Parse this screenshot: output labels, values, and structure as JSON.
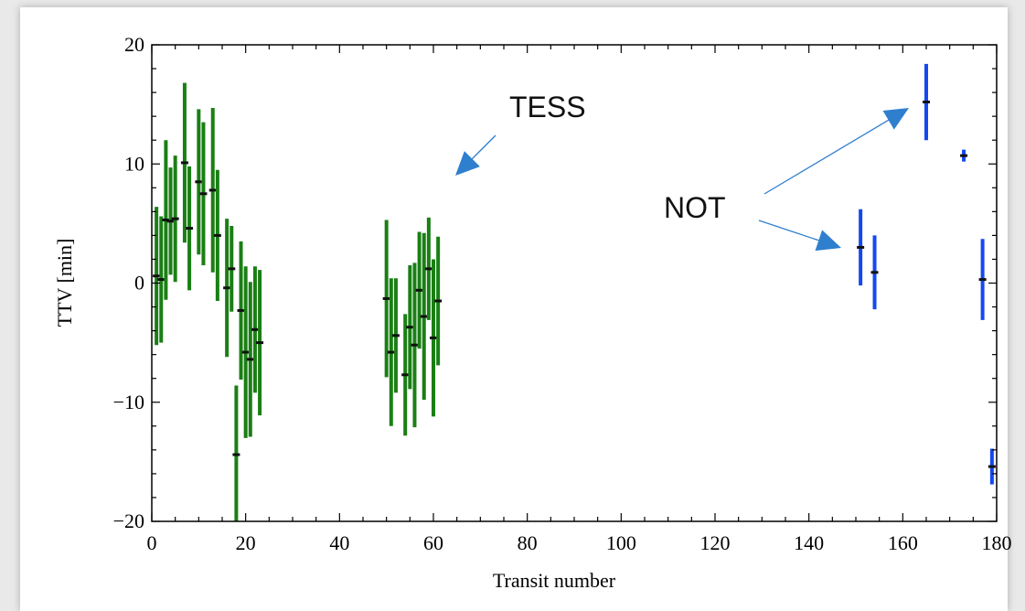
{
  "chart_data": {
    "type": "scatter",
    "xlabel": "Transit number",
    "ylabel": "TTV [min]",
    "xlim": [
      0,
      180
    ],
    "ylim": [
      -20,
      20
    ],
    "xticks": [
      0,
      20,
      40,
      60,
      80,
      100,
      120,
      140,
      160,
      180
    ],
    "yticks": [
      -20,
      -10,
      0,
      10,
      20
    ],
    "grid": false,
    "series": [
      {
        "color": "#1a7f14",
        "points": [
          {
            "x": 1,
            "y": 0.6,
            "err": 5.8
          },
          {
            "x": 2,
            "y": 0.3,
            "err": 5.3
          },
          {
            "x": 3,
            "y": 5.3,
            "err": 6.7
          },
          {
            "x": 4,
            "y": 5.2,
            "err": 4.5
          },
          {
            "x": 5,
            "y": 5.4,
            "err": 5.3
          },
          {
            "x": 7,
            "y": 10.1,
            "err": 6.7
          },
          {
            "x": 8,
            "y": 4.6,
            "err": 5.2
          },
          {
            "x": 10,
            "y": 8.5,
            "err": 6.1
          },
          {
            "x": 11,
            "y": 7.5,
            "err": 6.0
          },
          {
            "x": 13,
            "y": 7.8,
            "err": 6.9
          },
          {
            "x": 14,
            "y": 4.0,
            "err": 5.5
          },
          {
            "x": 16,
            "y": -0.4,
            "err": 5.8
          },
          {
            "x": 17,
            "y": 1.2,
            "err": 3.6
          },
          {
            "x": 18,
            "y": -14.4,
            "err": 5.8
          },
          {
            "x": 19,
            "y": -2.3,
            "err": 5.8
          },
          {
            "x": 20,
            "y": -5.8,
            "err": 7.2
          },
          {
            "x": 21,
            "y": -6.4,
            "err": 6.5
          },
          {
            "x": 22,
            "y": -3.9,
            "err": 5.3
          },
          {
            "x": 23,
            "y": -5.0,
            "err": 6.1
          },
          {
            "x": 50,
            "y": -1.3,
            "err": 6.6
          },
          {
            "x": 51,
            "y": -5.8,
            "err": 6.2
          },
          {
            "x": 52,
            "y": -4.4,
            "err": 4.8
          },
          {
            "x": 54,
            "y": -7.7,
            "err": 5.1
          },
          {
            "x": 55,
            "y": -3.7,
            "err": 5.2
          },
          {
            "x": 56,
            "y": -5.2,
            "err": 6.9
          },
          {
            "x": 57,
            "y": -0.6,
            "err": 4.9
          },
          {
            "x": 58,
            "y": -2.8,
            "err": 7.0
          },
          {
            "x": 59,
            "y": 1.2,
            "err": 4.3
          },
          {
            "x": 60,
            "y": -4.6,
            "err": 6.6
          },
          {
            "x": 61,
            "y": -1.5,
            "err": 5.4
          }
        ]
      },
      {
        "color": "#1448f0",
        "points": [
          {
            "x": 151,
            "y": 3.0,
            "err": 3.2
          },
          {
            "x": 154,
            "y": 0.9,
            "err": 3.1
          },
          {
            "x": 165,
            "y": 15.2,
            "err": 3.2
          },
          {
            "x": 173,
            "y": 10.7,
            "err": 0.5
          },
          {
            "x": 177,
            "y": 0.3,
            "err": 3.4
          },
          {
            "x": 179,
            "y": -15.4,
            "err": 1.5
          }
        ]
      }
    ],
    "annotations": [
      {
        "text": "TESS"
      },
      {
        "text": "NOT"
      }
    ]
  }
}
